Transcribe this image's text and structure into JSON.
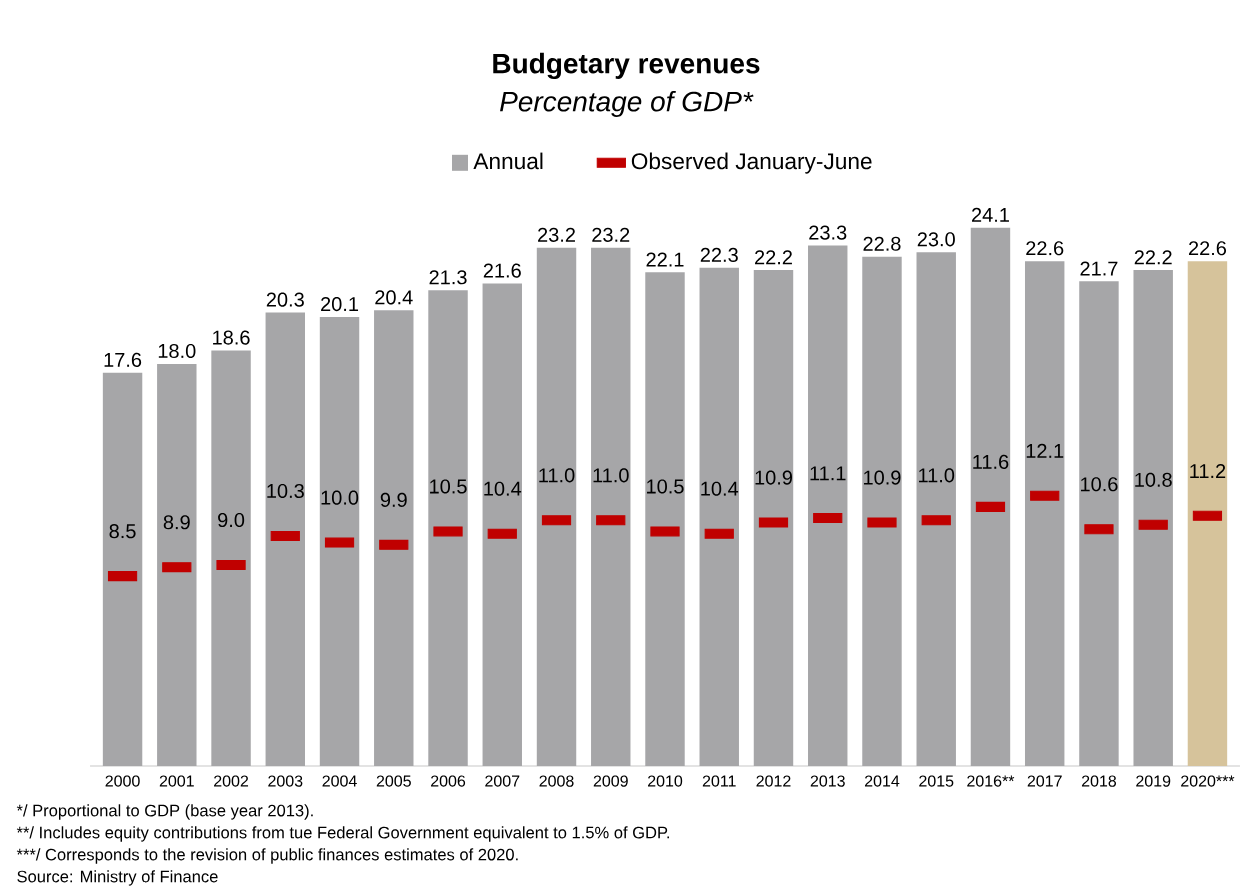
{
  "chart_data": {
    "type": "bar",
    "title": "Budgetary revenues",
    "subtitle": "Percentage of GDP*",
    "categories": [
      "2000",
      "2001",
      "2002",
      "2003",
      "2004",
      "2005",
      "2006",
      "2007",
      "2008",
      "2009",
      "2010",
      "2011",
      "2012",
      "2013",
      "2014",
      "2015",
      "2016**",
      "2017",
      "2018",
      "2019",
      "2020***"
    ],
    "series": [
      {
        "name": "Annual",
        "color": "#a6a6a8",
        "colors": [
          "#a6a6a8",
          "#a6a6a8",
          "#a6a6a8",
          "#a6a6a8",
          "#a6a6a8",
          "#a6a6a8",
          "#a6a6a8",
          "#a6a6a8",
          "#a6a6a8",
          "#a6a6a8",
          "#a6a6a8",
          "#a6a6a8",
          "#a6a6a8",
          "#a6a6a8",
          "#a6a6a8",
          "#a6a6a8",
          "#a6a6a8",
          "#a6a6a8",
          "#a6a6a8",
          "#a6a6a8",
          "#d6c39b"
        ],
        "values": [
          17.6,
          18.0,
          18.6,
          20.3,
          20.1,
          20.4,
          21.3,
          21.6,
          23.2,
          23.2,
          22.1,
          22.3,
          22.2,
          23.3,
          22.8,
          23.0,
          24.1,
          22.6,
          21.7,
          22.2,
          22.6
        ],
        "value_labels": [
          "17.6",
          "18.0",
          "18.6",
          "20.3",
          "20.1",
          "20.4",
          "21.3",
          "21.6",
          "23.2",
          "23.2",
          "22.1",
          "22.3",
          "22.2",
          "23.3",
          "22.8",
          "23.0",
          "24.1",
          "22.6",
          "21.7",
          "22.2",
          "22.6"
        ]
      },
      {
        "name": "Observed January-June",
        "type": "scatter",
        "marker": "square",
        "color": "#c00000",
        "values": [
          8.5,
          8.9,
          9.0,
          10.3,
          10.0,
          9.9,
          10.5,
          10.4,
          11.0,
          11.0,
          10.5,
          10.4,
          10.9,
          11.1,
          10.9,
          11.0,
          11.6,
          12.1,
          10.6,
          10.8,
          11.2
        ],
        "value_labels": [
          "8.5",
          "8.9",
          "9.0",
          "10.3",
          "10.0",
          "9.9",
          "10.5",
          "10.4",
          "11.0",
          "11.0",
          "10.5",
          "10.4",
          "10.9",
          "11.1",
          "10.9",
          "11.0",
          "11.6",
          "12.1",
          "10.6",
          "10.8",
          "11.2"
        ]
      }
    ],
    "tick_labels": "x",
    "legend": "top",
    "annotations": [
      "*/ Proportional to GDP (base year 2013).",
      "**/ Includes equity contributions from tue Federal Government equivalent to 1.5% of GDP.",
      "***/ Corresponds to the revision of public finances estimates of 2020.",
      "Source: Ministry of Finance"
    ]
  }
}
